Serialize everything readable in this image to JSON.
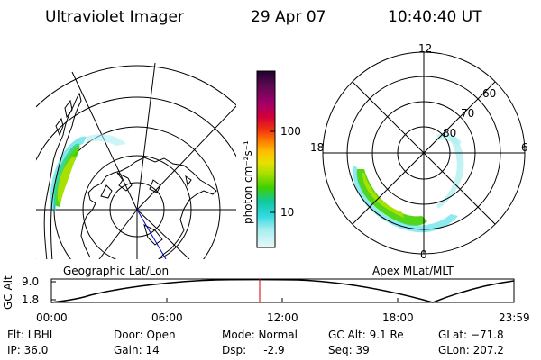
{
  "header": {
    "instrument": "Ultraviolet Imager",
    "date": "29 Apr 07",
    "time": "10:40:40 UT"
  },
  "left_panel": {
    "caption": "Geographic Lat/Lon"
  },
  "right_panel": {
    "caption": "Apex MLat/MLT",
    "mlt_labels": [
      "12",
      "18",
      "6",
      "0"
    ],
    "lat_labels": [
      "60",
      "70",
      "80"
    ]
  },
  "colorbar": {
    "unit_label": "photon cm⁻²s⁻¹",
    "tick_labels": [
      "100",
      "10"
    ],
    "colors": [
      "#200030",
      "#5a0a50",
      "#a0006a",
      "#d0003a",
      "#f03010",
      "#ff8000",
      "#ffc000",
      "#e8e000",
      "#a8e000",
      "#40d000",
      "#10c8a0",
      "#30d8e0",
      "#a8eef0",
      "#e8f8f8"
    ]
  },
  "altitude_plot": {
    "ylabel": "GC Alt",
    "y_ticks": [
      "9.0",
      "1.8"
    ],
    "x_ticks": [
      "00:00",
      "06:00",
      "12:00",
      "18:00",
      "23:59"
    ],
    "current_time_color": "#cc0000"
  },
  "status": {
    "filter": "Flt: LBHL",
    "ip": "IP: 36.0",
    "door": "Door: Open",
    "gain": "Gain: 14",
    "mode": "Mode: Normal",
    "dsp": "Dsp:     -2.9",
    "gc_alt": "GC Alt: 9.1 Re",
    "seq": "Seq: 39",
    "glat": "GLat: −71.8",
    "glon": "GLon: 207.2"
  }
}
